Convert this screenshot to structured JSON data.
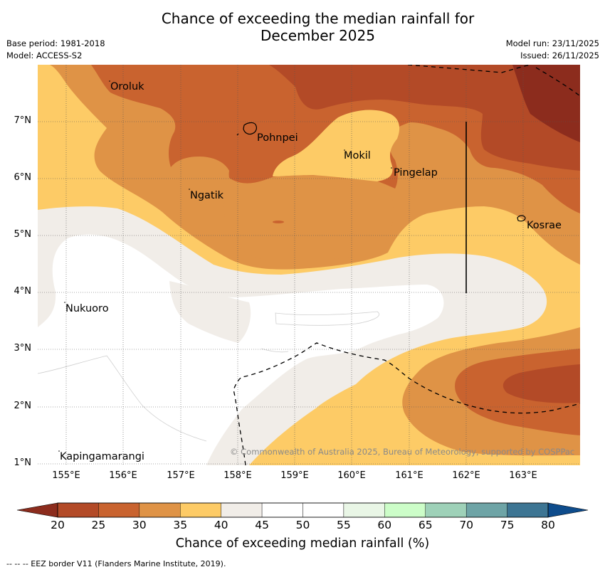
{
  "title_line1": "Chance of exceeding the median rainfall for",
  "title_line2": "December 2025",
  "meta": {
    "base_period": "Base period: 1981-2018",
    "model": "Model: ACCESS-S2",
    "model_run": "Model run: 23/11/2025",
    "issued": "Issued: 26/11/2025"
  },
  "map": {
    "x_ticks": [
      "155°E",
      "156°E",
      "157°E",
      "158°E",
      "159°E",
      "160°E",
      "161°E",
      "162°E",
      "163°E"
    ],
    "y_ticks": [
      "7°N",
      "6°N",
      "5°N",
      "4°N",
      "3°N",
      "2°N",
      "1°N"
    ],
    "places": {
      "oroluk": "Oroluk",
      "pohnpei": "Pohnpei",
      "mokil": "Mokil",
      "pingelap": "Pingelap",
      "ngatik": "Ngatik",
      "kosrae": "Kosrae",
      "nukuoro": "Nukuoro",
      "kapingamarangi": "Kapingamarangi"
    },
    "copyright": "© Commonwealth of Australia 2025, Bureau of Meteorology, supported by COSPPac"
  },
  "legend": {
    "ticks": [
      "20",
      "25",
      "30",
      "35",
      "40",
      "45",
      "50",
      "55",
      "60",
      "65",
      "70",
      "75",
      "80"
    ],
    "colors": [
      "#b34a27",
      "#c9632f",
      "#df9346",
      "#fdcb66",
      "#f1ede8",
      "#ffffff",
      "#ffffff",
      "#e9f6e6",
      "#ccfdc8",
      "#9ed1b8",
      "#6ea4a6",
      "#3d7593"
    ],
    "under_color": "#8c2c1d",
    "over_color": "#0e4c8c",
    "label": "Chance of exceeding median rainfall (%)"
  },
  "eez_note": "--  --  -- EEZ border V11 (Flanders Marine Institute, 2019)."
}
